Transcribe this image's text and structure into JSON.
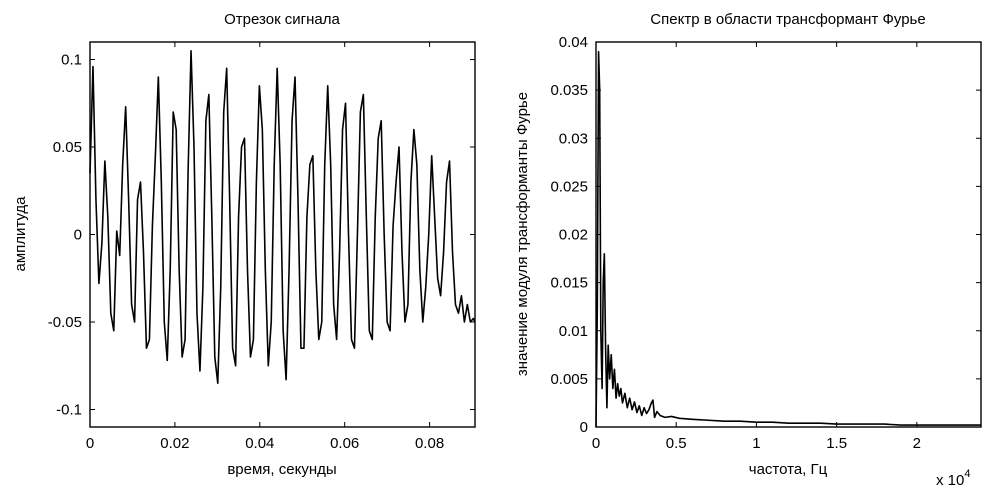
{
  "chart_data": [
    {
      "type": "line",
      "title": "Отрезок сигнала",
      "xlabel": "время, секунды",
      "ylabel": "амплитуда",
      "xlim": [
        0,
        0.0907
      ],
      "ylim": [
        -0.11,
        0.11
      ],
      "xticks": [
        0,
        0.02,
        0.04,
        0.06,
        0.08
      ],
      "xtick_labels": [
        "0",
        "0.02",
        "0.04",
        "0.06",
        "0.08"
      ],
      "yticks": [
        0.1,
        0.05,
        0,
        -0.05,
        -0.1
      ],
      "ytick_labels": [
        "0.1",
        "0.05",
        "0",
        "-0.05",
        "-0.1"
      ],
      "grid": false,
      "series": [
        {
          "x": [
            0,
            0.0007,
            0.0014,
            0.0021,
            0.0028,
            0.0035,
            0.0042,
            0.0049,
            0.0056,
            0.0063,
            0.007,
            0.0077,
            0.0084,
            0.0091,
            0.0098,
            0.0105,
            0.0112,
            0.0119,
            0.0126,
            0.0133,
            0.014,
            0.0147,
            0.0154,
            0.0161,
            0.0168,
            0.0175,
            0.0182,
            0.0189,
            0.0196,
            0.0203,
            0.021,
            0.0217,
            0.0224,
            0.0231,
            0.0238,
            0.0245,
            0.0252,
            0.0259,
            0.0266,
            0.0273,
            0.028,
            0.0287,
            0.0294,
            0.0301,
            0.0308,
            0.0315,
            0.0322,
            0.0329,
            0.0336,
            0.0343,
            0.035,
            0.0357,
            0.0364,
            0.0371,
            0.0378,
            0.0385,
            0.0392,
            0.0399,
            0.0406,
            0.0413,
            0.042,
            0.0427,
            0.0434,
            0.0441,
            0.0448,
            0.0455,
            0.0462,
            0.0469,
            0.0476,
            0.0483,
            0.049,
            0.0497,
            0.0504,
            0.0511,
            0.0518,
            0.0525,
            0.0532,
            0.0539,
            0.0546,
            0.0553,
            0.056,
            0.0567,
            0.0574,
            0.0581,
            0.0588,
            0.0595,
            0.0602,
            0.0609,
            0.0616,
            0.0623,
            0.063,
            0.0637,
            0.0644,
            0.0651,
            0.0658,
            0.0665,
            0.0672,
            0.0679,
            0.0686,
            0.0693,
            0.07,
            0.0707,
            0.0714,
            0.0721,
            0.0728,
            0.0735,
            0.0742,
            0.0749,
            0.0756,
            0.0763,
            0.077,
            0.0777,
            0.0784,
            0.0791,
            0.0798,
            0.0805,
            0.0812,
            0.0819,
            0.0826,
            0.0833,
            0.084,
            0.0847,
            0.0854,
            0.0861,
            0.0868,
            0.0875,
            0.0882,
            0.0889,
            0.0896,
            0.0903,
            0.0907
          ],
          "y": [
            0.035,
            0.096,
            0.02,
            -0.028,
            -0.005,
            0.042,
            0.01,
            -0.045,
            -0.055,
            0.002,
            -0.012,
            0.04,
            0.073,
            0.02,
            -0.04,
            -0.05,
            0.02,
            0.03,
            -0.01,
            -0.065,
            -0.06,
            0.005,
            0.045,
            0.09,
            0.03,
            -0.05,
            -0.072,
            -0.02,
            0.07,
            0.06,
            -0.02,
            -0.07,
            -0.06,
            0.035,
            0.105,
            0.05,
            -0.045,
            -0.078,
            -0.03,
            0.065,
            0.08,
            0.01,
            -0.07,
            -0.085,
            -0.03,
            0.07,
            0.095,
            0.02,
            -0.065,
            -0.075,
            0.01,
            0.05,
            0.055,
            -0.02,
            -0.07,
            -0.06,
            0.03,
            0.085,
            0.06,
            -0.02,
            -0.075,
            -0.05,
            0.04,
            0.095,
            0.04,
            -0.055,
            -0.083,
            -0.02,
            0.065,
            0.09,
            0.02,
            -0.065,
            -0.065,
            0.01,
            0.04,
            0.045,
            -0.02,
            -0.06,
            -0.05,
            0.04,
            0.085,
            0.04,
            -0.04,
            -0.06,
            -0.01,
            0.06,
            0.075,
            0.0,
            -0.06,
            -0.065,
            0.0,
            0.07,
            0.08,
            0.01,
            -0.055,
            -0.06,
            0.01,
            0.055,
            0.065,
            0.0,
            -0.05,
            -0.055,
            0.005,
            0.03,
            0.05,
            -0.01,
            -0.05,
            -0.04,
            0.03,
            0.06,
            0.04,
            -0.02,
            -0.05,
            -0.03,
            0.0,
            0.045,
            0.01,
            -0.025,
            -0.035,
            -0.01,
            0.03,
            0.042,
            -0.01,
            -0.04,
            -0.045,
            -0.035,
            -0.05,
            -0.04,
            -0.05,
            -0.048,
            -0.05
          ]
        }
      ]
    },
    {
      "type": "line",
      "title": "Спектр в области трансформант Фурье",
      "xlabel": "частота, Гц",
      "ylabel": "значение модуля трансформанты Фурье",
      "x_multiplier_label": "x 10",
      "x_multiplier_exponent": "4",
      "xlim": [
        0,
        24000
      ],
      "ylim": [
        0,
        0.04
      ],
      "xticks": [
        0,
        5000,
        10000,
        15000,
        20000
      ],
      "xtick_labels": [
        "0",
        "0.5",
        "1",
        "1.5",
        "2"
      ],
      "yticks": [
        0.04,
        0.035,
        0.03,
        0.025,
        0.02,
        0.015,
        0.01,
        0.005,
        0
      ],
      "ytick_labels": [
        "0.04",
        "0.035",
        "0.03",
        "0.025",
        "0.02",
        "0.015",
        "0.01",
        "0.005",
        "0"
      ],
      "grid": false,
      "series": [
        {
          "x": [
            0,
            80,
            160,
            230,
            300,
            380,
            450,
            520,
            600,
            680,
            760,
            850,
            950,
            1050,
            1150,
            1250,
            1350,
            1450,
            1550,
            1650,
            1800,
            1950,
            2100,
            2250,
            2400,
            2550,
            2700,
            2850,
            3000,
            3150,
            3300,
            3450,
            3550,
            3650,
            3800,
            4000,
            4300,
            4700,
            5200,
            6000,
            7000,
            8000,
            9000,
            10000,
            11000,
            12000,
            13000,
            14000,
            15000,
            16000,
            17000,
            18000,
            19000,
            20000,
            21000,
            22000,
            23000,
            24000
          ],
          "y": [
            0.0,
            0.012,
            0.039,
            0.035,
            0.01,
            0.004,
            0.015,
            0.018,
            0.008,
            0.002,
            0.0085,
            0.005,
            0.0075,
            0.004,
            0.006,
            0.003,
            0.0045,
            0.0032,
            0.004,
            0.0025,
            0.0035,
            0.002,
            0.003,
            0.0018,
            0.0026,
            0.0015,
            0.0022,
            0.0012,
            0.002,
            0.0014,
            0.0018,
            0.0025,
            0.0028,
            0.001,
            0.0016,
            0.0012,
            0.001,
            0.0011,
            0.0009,
            0.0008,
            0.0007,
            0.0006,
            0.0006,
            0.0005,
            0.0005,
            0.0004,
            0.0004,
            0.0004,
            0.0003,
            0.0003,
            0.0003,
            0.0003,
            0.0002,
            0.0002,
            0.0002,
            0.0002,
            0.0002,
            0.0002
          ]
        }
      ]
    }
  ]
}
